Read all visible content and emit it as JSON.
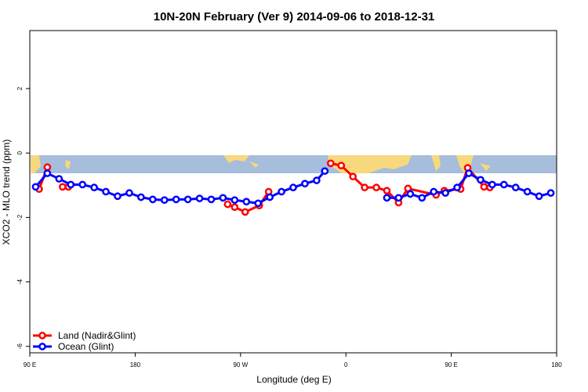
{
  "chart_data": {
    "type": "line",
    "title": "10N-20N February (Ver 9)   2014-09-06 to 2018-12-31",
    "xlabel": "Longitude (deg E)",
    "ylabel": "XCO2 - MLO trend (ppm)",
    "xlim": [
      90,
      540
    ],
    "xticks": [
      {
        "value": 90,
        "label": "90 E"
      },
      {
        "value": 180,
        "label": "180"
      },
      {
        "value": 270,
        "label": "90 W"
      },
      {
        "value": 360,
        "label": "0"
      },
      {
        "value": 450,
        "label": "90 E"
      },
      {
        "value": 540,
        "label": "180"
      }
    ],
    "ylim": [
      -6.2,
      3.8
    ],
    "yticks": [
      -6,
      -4,
      -2,
      0,
      2
    ],
    "legend": "bottom-left",
    "series": [
      {
        "name": "Land (Nadir&Glint)",
        "color": "#ff0000",
        "x": [
          98,
          105,
          null,
          118,
          123,
          null,
          259,
          265,
          274,
          286,
          294,
          null,
          347,
          356,
          366,
          376,
          386,
          395,
          405,
          413,
          437,
          444,
          458,
          464,
          478,
          483
        ],
        "values": [
          -1.12,
          -0.44,
          null,
          -1.05,
          -1.05,
          null,
          -1.59,
          -1.68,
          -1.83,
          -1.63,
          -1.2,
          null,
          -0.32,
          -0.39,
          -0.73,
          -1.07,
          -1.07,
          -1.17,
          -1.54,
          -1.1,
          -1.3,
          -1.17,
          -1.12,
          -0.46,
          -1.05,
          -1.07
        ]
      },
      {
        "name": "Ocean (Glint)",
        "color": "#0000ff",
        "x": [
          95,
          105,
          115,
          125,
          135,
          145,
          155,
          165,
          175,
          185,
          195,
          205,
          215,
          225,
          235,
          245,
          255,
          265,
          275,
          285,
          295,
          305,
          315,
          325,
          335,
          342,
          null,
          395,
          405,
          415,
          425,
          435,
          445,
          455,
          465,
          475,
          485,
          495,
          505,
          515,
          525,
          535
        ],
        "values": [
          -1.05,
          -0.63,
          -0.8,
          -0.98,
          -0.98,
          -1.07,
          -1.2,
          -1.34,
          -1.24,
          -1.37,
          -1.44,
          -1.46,
          -1.44,
          -1.44,
          -1.41,
          -1.44,
          -1.39,
          -1.46,
          -1.51,
          -1.56,
          -1.37,
          -1.2,
          -1.07,
          -0.95,
          -0.85,
          -0.56,
          null,
          -1.39,
          -1.39,
          -1.27,
          -1.39,
          -1.2,
          -1.24,
          -1.07,
          -0.63,
          -0.83,
          -0.98,
          -0.98,
          -1.07,
          -1.2,
          -1.34,
          -1.24
        ]
      }
    ]
  }
}
